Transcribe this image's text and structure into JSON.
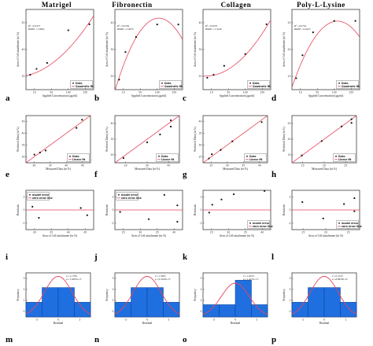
{
  "columns": [
    "Matrigel",
    "Fibronectin",
    "Collagen",
    "Poly-L-Lysine"
  ],
  "panel_letters": [
    "a",
    "b",
    "c",
    "d",
    "e",
    "f",
    "g",
    "h",
    "i",
    "j",
    "k",
    "l",
    "m",
    "n",
    "o",
    "p"
  ],
  "colors": {
    "fit": "#e8455a",
    "point": "#111111",
    "bar": "#1f6fe0",
    "bar_edge": "#0b3f91"
  },
  "chart_data": [
    {
      "panel": "a",
      "type": "scatter",
      "fit": "quadratic",
      "annotations": [
        "R² =0.9477",
        "RMSE =1.6662"
      ],
      "xlabel": "Applied Concentration (μg/ml)",
      "ylabel": "Area of Cell attachment (in %)",
      "legend": [
        "Data",
        "Quadratic fit"
      ],
      "legend_position": "bottom-right",
      "x": [
        10,
        25,
        50,
        100,
        150
      ],
      "y": [
        30,
        32,
        34,
        45,
        47
      ],
      "xlim": [
        0,
        160
      ],
      "ylim": [
        25,
        52
      ],
      "fit_coef": [
        29.7,
        0.03,
        0.0006
      ],
      "xticks": [
        "10",
        "50",
        "100",
        "150"
      ],
      "yticks": [
        "30",
        "40",
        "50"
      ]
    },
    {
      "panel": "b",
      "type": "scatter",
      "fit": "quadratic",
      "annotations": [
        "R² =0.9184",
        "RMSE =2.0679"
      ],
      "xlabel": "Applied Concentration (μg/ml)",
      "ylabel": "Area of Cell attachment (in %)",
      "legend": [
        "Data",
        "Quadratic fit"
      ],
      "legend_position": "bottom-right",
      "x": [
        10,
        25,
        50,
        100,
        150
      ],
      "y": [
        22,
        33,
        39,
        44,
        44
      ],
      "xlim": [
        0,
        160
      ],
      "ylim": [
        18,
        50
      ],
      "fit_coef": [
        17.5,
        0.56,
        -0.0027
      ],
      "xticks": [
        "10",
        "50",
        "100",
        "150"
      ],
      "yticks": [
        "20",
        "30",
        "40"
      ]
    },
    {
      "panel": "c",
      "type": "scatter",
      "fit": "quadratic",
      "annotations": [
        "R² =0.9670",
        "RMSE =1.5446"
      ],
      "xlabel": "Applied Concentration (μg/ml)",
      "ylabel": "Area of Cell attachment (in %)",
      "legend": [
        "Data",
        "Quadratic fit"
      ],
      "legend_position": "bottom-right",
      "x": [
        10,
        25,
        50,
        100,
        150
      ],
      "y": [
        22,
        23,
        26,
        30,
        40
      ],
      "xlim": [
        0,
        160
      ],
      "ylim": [
        18,
        45
      ],
      "fit_coef": [
        22.6,
        -0.01,
        0.0008
      ],
      "xticks": [
        "10",
        "50",
        "100",
        "150"
      ],
      "yticks": [
        "20",
        "30",
        "40"
      ]
    },
    {
      "panel": "d",
      "type": "scatter",
      "fit": "quadratic",
      "annotations": [
        "R² =0.9794",
        "RMSE =0.6425"
      ],
      "xlabel": "Applied Concentration (μg/ml)",
      "ylabel": "Area of Cell attachment (in %)",
      "legend": [
        "Data",
        "Quadratic fit"
      ],
      "legend_position": "bottom-right",
      "x": [
        10,
        25,
        50,
        100,
        150
      ],
      "y": [
        16,
        20,
        24,
        26,
        26
      ],
      "xlim": [
        0,
        160
      ],
      "ylim": [
        14,
        28
      ],
      "fit_coef": [
        14.4,
        0.215,
        -0.001
      ],
      "xticks": [
        "10",
        "50",
        "100",
        "150"
      ],
      "yticks": [
        "15",
        "20",
        "25"
      ]
    },
    {
      "panel": "e",
      "type": "scatter",
      "fit": "linear",
      "xlabel": "Measured Data (in %)",
      "ylabel": "Predicted Data (in %)",
      "legend": [
        "Data",
        "Linear fit"
      ],
      "legend_position": "bottom-right",
      "x": [
        30,
        32,
        34,
        45,
        47
      ],
      "y": [
        31,
        32,
        33,
        44,
        48
      ],
      "xlim": [
        27,
        50
      ],
      "ylim": [
        27,
        50
      ],
      "xticks": [
        "30",
        "35",
        "40",
        "45"
      ],
      "yticks": [
        "30",
        "35",
        "40",
        "45"
      ]
    },
    {
      "panel": "f",
      "type": "scatter",
      "fit": "linear",
      "xlabel": "Measured Data (in %)",
      "ylabel": "Predicted Data (in %)",
      "legend": [
        "Data",
        "Linear fit"
      ],
      "legend_position": "bottom-right",
      "x": [
        22,
        33,
        39,
        44,
        44
      ],
      "y": [
        21,
        31,
        36,
        41,
        45
      ],
      "xlim": [
        18,
        48
      ],
      "ylim": [
        18,
        48
      ],
      "xticks": [
        "20",
        "30",
        "40"
      ],
      "yticks": [
        "20",
        "30",
        "40"
      ]
    },
    {
      "panel": "g",
      "type": "scatter",
      "fit": "linear",
      "xlabel": "Measured Data (in %)",
      "ylabel": "Predicted Data (in %)",
      "legend": [
        "Data",
        "Linear fit"
      ],
      "legend_position": "bottom-right",
      "x": [
        22,
        23,
        26,
        30,
        40
      ],
      "y": [
        22,
        24,
        26,
        30,
        39
      ],
      "xlim": [
        20,
        42
      ],
      "ylim": [
        20,
        42
      ],
      "xticks": [
        "25",
        "30",
        "35",
        "40"
      ],
      "yticks": [
        "25",
        "30",
        "35",
        "40"
      ]
    },
    {
      "panel": "h",
      "type": "scatter",
      "fit": "linear",
      "xlabel": "Measured Data (in %)",
      "ylabel": "Predicted Data (in %)",
      "legend": [
        "Data",
        "Linear fit"
      ],
      "legend_position": "bottom-right",
      "x": [
        16,
        20,
        24,
        26,
        26
      ],
      "y": [
        16,
        20,
        24,
        25,
        26
      ],
      "xlim": [
        14,
        27
      ],
      "ylim": [
        14,
        27
      ],
      "xticks": [
        "15",
        "20",
        "25"
      ],
      "yticks": [
        "15",
        "20",
        "25"
      ]
    },
    {
      "panel": "i",
      "type": "scatter",
      "fit": "zero",
      "xlabel": "Area of Cell attachment (in %)",
      "ylabel": "Residuals",
      "legend": [
        "model error",
        "zero error line"
      ],
      "legend_position": "top-left",
      "x": [
        30,
        32,
        34,
        45,
        47
      ],
      "y": [
        0.5,
        -1.2,
        2.1,
        0.3,
        -0.8
      ],
      "xlim": [
        28,
        49
      ],
      "ylim": [
        -3,
        3
      ],
      "xticks": [
        "30",
        "35",
        "40",
        "45"
      ],
      "yticks": [
        "-2",
        "0",
        "2"
      ]
    },
    {
      "panel": "j",
      "type": "scatter",
      "fit": "zero",
      "xlabel": "Area of Cell attachment (in %)",
      "ylabel": "Residuals",
      "legend": [
        "model error",
        "zero error line"
      ],
      "legend_position": "top-left",
      "x": [
        22,
        33,
        39,
        44,
        44
      ],
      "y": [
        -0.3,
        -1.4,
        2.3,
        0.7,
        -1.8
      ],
      "xlim": [
        20,
        46
      ],
      "ylim": [
        -3,
        3
      ],
      "xticks": [
        "25",
        "30",
        "35",
        "40"
      ],
      "yticks": [
        "-2",
        "0",
        "2"
      ]
    },
    {
      "panel": "k",
      "type": "scatter",
      "fit": "zero",
      "xlabel": "Area of Cell attachment (in %)",
      "ylabel": "Residuals",
      "legend": [
        "model error",
        "zero error line"
      ],
      "legend_position": "bottom-right",
      "x": [
        22,
        23,
        26,
        30,
        40
      ],
      "y": [
        -0.4,
        0.8,
        1.6,
        2.4,
        2.9
      ],
      "xlim": [
        20,
        42
      ],
      "ylim": [
        -3,
        3
      ],
      "xticks": [
        "25",
        "30",
        "35",
        "40"
      ],
      "yticks": [
        "-2",
        "0",
        "2"
      ]
    },
    {
      "panel": "l",
      "type": "scatter",
      "fit": "zero",
      "xlabel": "Area of Cell attachment (in %)",
      "ylabel": "Residuals",
      "legend": [
        "model error",
        "zero error line"
      ],
      "legend_position": "bottom-right",
      "x": [
        16,
        20,
        24,
        26,
        26
      ],
      "y": [
        1.2,
        -1.3,
        0.9,
        -0.2,
        1.8
      ],
      "xlim": [
        14,
        27
      ],
      "ylim": [
        -3,
        3
      ],
      "xticks": [
        "15",
        "20",
        "25"
      ],
      "yticks": [
        "-2",
        "0",
        "2"
      ]
    },
    {
      "panel": "m",
      "type": "bar",
      "fit": "normal",
      "annotations": [
        "σ =1.1796",
        "μ =1.9003e-15"
      ],
      "xlabel": "Residual",
      "ylabel": "Frequency",
      "bin_edges": [
        -3,
        -1.5,
        0,
        1.5,
        3
      ],
      "values": [
        1,
        2,
        2,
        1
      ],
      "ylim": [
        0,
        3
      ],
      "xticks": [
        "-2",
        "0",
        "2"
      ],
      "yticks": [
        "0",
        "1",
        "2",
        "3"
      ]
    },
    {
      "panel": "n",
      "type": "bar",
      "fit": "normal",
      "annotations": [
        "σ =1.5665",
        "μ =9.3269e-15"
      ],
      "xlabel": "Residual",
      "ylabel": "Frequency",
      "bin_edges": [
        -3,
        -1.5,
        0,
        1.5,
        3
      ],
      "values": [
        1,
        2,
        2,
        1
      ],
      "ylim": [
        0,
        3
      ],
      "xticks": [
        "-2",
        "0",
        "2"
      ],
      "yticks": [
        "0",
        "1",
        "2",
        "3"
      ]
    },
    {
      "panel": "o",
      "type": "bar",
      "fit": "normal",
      "annotations": [
        "σ =1.0019",
        "μ =1.4211e-15"
      ],
      "xlabel": "Residual",
      "ylabel": "Frequency",
      "bin_edges": [
        -3,
        -1.5,
        0,
        1.5,
        3
      ],
      "values": [
        1,
        1,
        3,
        1
      ],
      "ylim": [
        0,
        3.6
      ],
      "xticks": [
        "-2",
        "0",
        "2"
      ],
      "yticks": [
        "0",
        "1",
        "2",
        "3"
      ]
    },
    {
      "panel": "p",
      "type": "bar",
      "fit": "normal",
      "annotations": [
        "σ =0.4143",
        "μ =8.8818e-16"
      ],
      "xlabel": "Residual",
      "ylabel": "Frequency",
      "bin_edges": [
        -3,
        -1.5,
        0,
        1.5,
        3
      ],
      "values": [
        1,
        2,
        2,
        1
      ],
      "ylim": [
        0,
        3
      ],
      "xticks": [
        "-1",
        "0",
        "1"
      ],
      "yticks": [
        "0",
        "1",
        "2",
        "3"
      ]
    }
  ]
}
